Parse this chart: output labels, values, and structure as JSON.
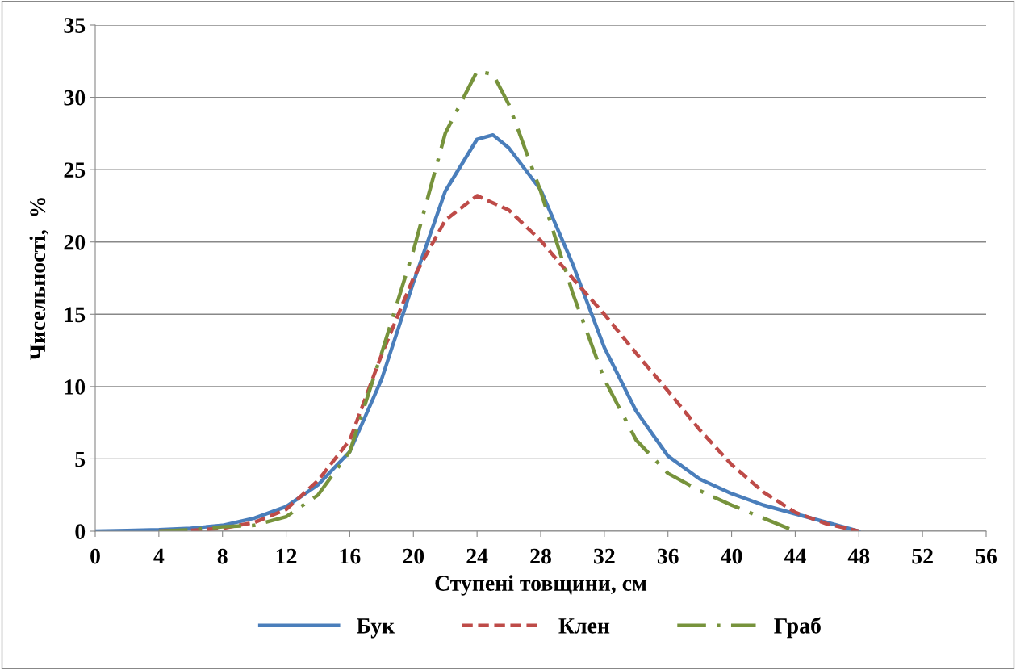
{
  "chart_data": {
    "type": "line",
    "xlabel": "Ступені товщини, см",
    "ylabel": "Чисельності,  %",
    "xlim": [
      0,
      56
    ],
    "xticks": [
      0,
      4,
      8,
      12,
      16,
      20,
      24,
      28,
      32,
      36,
      40,
      44,
      48,
      52,
      56
    ],
    "ylim": [
      0,
      35
    ],
    "yticks": [
      0,
      5,
      10,
      15,
      20,
      25,
      30,
      35
    ],
    "grid": "y",
    "legend": "bottom",
    "marker": "none",
    "series": [
      {
        "name": "Бук",
        "color": "#4a7ebb",
        "line_style": "solid",
        "x": [
          0,
          2,
          4,
          6,
          8,
          10,
          12,
          14,
          16,
          18,
          20,
          22,
          24,
          25,
          26,
          28,
          30,
          32,
          34,
          36,
          38,
          40,
          42,
          44,
          46,
          48
        ],
        "values": [
          0,
          0.05,
          0.1,
          0.2,
          0.4,
          0.9,
          1.7,
          3.2,
          5.5,
          10.5,
          17.2,
          23.5,
          27.1,
          27.4,
          26.5,
          23.6,
          18.5,
          12.7,
          8.3,
          5.2,
          3.6,
          2.6,
          1.8,
          1.2,
          0.6,
          0
        ]
      },
      {
        "name": "Клен",
        "color": "#be4b48",
        "line_style": "dashed",
        "x": [
          4,
          6,
          8,
          10,
          12,
          14,
          16,
          18,
          20,
          22,
          24,
          26,
          28,
          30,
          32,
          34,
          36,
          38,
          40,
          42,
          44,
          46,
          48
        ],
        "values": [
          0,
          0.05,
          0.2,
          0.6,
          1.5,
          3.5,
          6.3,
          12.2,
          17.5,
          21.5,
          23.2,
          22.2,
          20.1,
          17.5,
          15.0,
          12.3,
          9.7,
          7.0,
          4.6,
          2.7,
          1.3,
          0.5,
          0
        ]
      },
      {
        "name": "Граб",
        "color": "#77933c",
        "line_style": "dashdot",
        "x": [
          4,
          6,
          8,
          10,
          12,
          14,
          16,
          18,
          20,
          22,
          24,
          25,
          26,
          28,
          30,
          32,
          34,
          36,
          38,
          40,
          42,
          44
        ],
        "values": [
          0,
          0.1,
          0.3,
          0.4,
          1.0,
          2.5,
          5.5,
          12.3,
          19.4,
          27.5,
          31.8,
          31.6,
          29.5,
          23.5,
          16.5,
          10.5,
          6.3,
          4.0,
          2.8,
          1.8,
          0.9,
          0
        ]
      }
    ]
  }
}
